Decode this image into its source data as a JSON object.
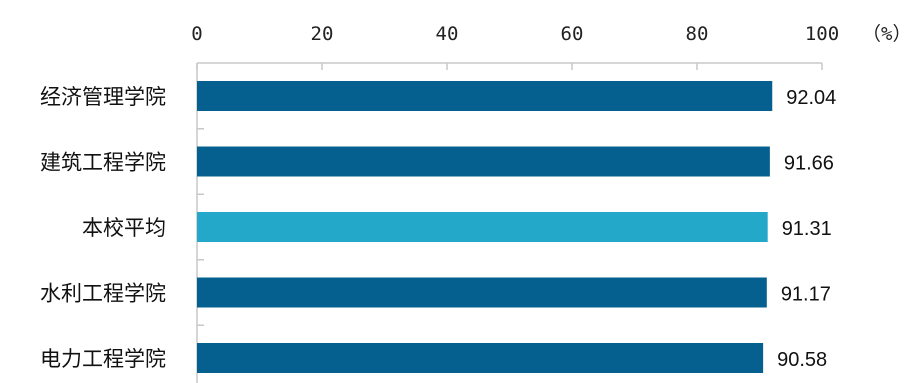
{
  "chart_data": {
    "type": "bar",
    "orientation": "horizontal",
    "categories": [
      "经济管理学院",
      "建筑工程学院",
      "本校平均",
      "水利工程学院",
      "电力工程学院"
    ],
    "values": [
      92.04,
      91.66,
      91.31,
      91.17,
      90.58
    ],
    "value_labels": [
      "92.04",
      "91.66",
      "91.31",
      "91.17",
      "90.58"
    ],
    "highlight_category": "本校平均",
    "x_ticks": [
      0,
      20,
      40,
      60,
      80,
      100
    ],
    "x_tick_labels": [
      "0",
      "20",
      "40",
      "60",
      "80",
      "100"
    ],
    "xlim": [
      0,
      100
    ],
    "x_axis_position": "top",
    "x_unit": "（%）",
    "title": "",
    "xlabel": "",
    "ylabel": "",
    "grid": false,
    "colors": {
      "bar": "#05608f",
      "highlight": "#24a8c9",
      "axis": "#c8c8c8"
    }
  }
}
